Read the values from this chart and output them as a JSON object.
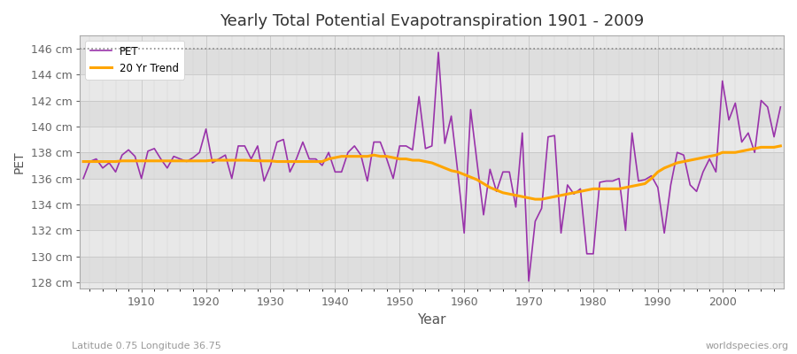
{
  "title": "Yearly Total Potential Evapotranspiration 1901 - 2009",
  "xlabel": "Year",
  "ylabel": "PET",
  "subtitle_left": "Latitude 0.75 Longitude 36.75",
  "subtitle_right": "worldspecies.org",
  "pet_color": "#9933AA",
  "trend_color": "#FFA500",
  "background_color": "#FFFFFF",
  "plot_bg_color_light": "#EBEBEB",
  "plot_bg_color_dark": "#DCDCDC",
  "dotted_line_color": "#888888",
  "ylim": [
    127.5,
    147.0
  ],
  "yticks": [
    128,
    130,
    132,
    134,
    136,
    138,
    140,
    142,
    144,
    146
  ],
  "xlim": [
    1900.5,
    2009.5
  ],
  "years": [
    1901,
    1902,
    1903,
    1904,
    1905,
    1906,
    1907,
    1908,
    1909,
    1910,
    1911,
    1912,
    1913,
    1914,
    1915,
    1916,
    1917,
    1918,
    1919,
    1920,
    1921,
    1922,
    1923,
    1924,
    1925,
    1926,
    1927,
    1928,
    1929,
    1930,
    1931,
    1932,
    1933,
    1934,
    1935,
    1936,
    1937,
    1938,
    1939,
    1940,
    1941,
    1942,
    1943,
    1944,
    1945,
    1946,
    1947,
    1948,
    1949,
    1950,
    1951,
    1952,
    1953,
    1954,
    1955,
    1956,
    1957,
    1958,
    1959,
    1960,
    1961,
    1962,
    1963,
    1964,
    1965,
    1966,
    1967,
    1968,
    1969,
    1970,
    1971,
    1972,
    1973,
    1974,
    1975,
    1976,
    1977,
    1978,
    1979,
    1980,
    1981,
    1982,
    1983,
    1984,
    1985,
    1986,
    1987,
    1988,
    1989,
    1990,
    1991,
    1992,
    1993,
    1994,
    1995,
    1996,
    1997,
    1998,
    1999,
    2000,
    2001,
    2002,
    2003,
    2004,
    2005,
    2006,
    2007,
    2008,
    2009
  ],
  "pet_values": [
    136.0,
    137.3,
    137.5,
    136.8,
    137.2,
    136.5,
    137.8,
    138.2,
    137.7,
    136.0,
    138.1,
    138.3,
    137.5,
    136.8,
    137.7,
    137.5,
    137.3,
    137.6,
    138.0,
    139.8,
    137.2,
    137.5,
    137.8,
    136.0,
    138.5,
    138.5,
    137.5,
    138.5,
    135.8,
    137.0,
    138.8,
    139.0,
    136.5,
    137.5,
    138.8,
    137.5,
    137.5,
    137.0,
    138.0,
    136.5,
    136.5,
    138.0,
    138.5,
    137.8,
    135.8,
    138.8,
    138.8,
    137.5,
    136.0,
    138.5,
    138.5,
    138.2,
    142.3,
    138.3,
    138.5,
    145.7,
    138.7,
    140.8,
    136.5,
    131.8,
    141.3,
    137.2,
    133.2,
    136.7,
    135.0,
    136.5,
    136.5,
    133.8,
    139.5,
    128.1,
    132.7,
    133.7,
    139.2,
    139.3,
    131.8,
    135.5,
    134.8,
    135.2,
    130.2,
    130.2,
    135.7,
    135.8,
    135.8,
    136.0,
    132.0,
    139.5,
    135.8,
    135.9,
    136.2,
    135.3,
    131.8,
    135.5,
    138.0,
    137.8,
    135.5,
    135.0,
    136.5,
    137.5,
    136.5,
    143.5,
    140.5,
    141.8,
    138.8,
    139.5,
    138.0,
    142.0,
    141.5,
    139.2,
    141.5
  ],
  "trend_values": [
    137.3,
    137.3,
    137.3,
    137.3,
    137.3,
    137.3,
    137.35,
    137.35,
    137.35,
    137.35,
    137.35,
    137.35,
    137.35,
    137.35,
    137.35,
    137.35,
    137.35,
    137.35,
    137.35,
    137.35,
    137.4,
    137.4,
    137.4,
    137.4,
    137.4,
    137.4,
    137.38,
    137.36,
    137.35,
    137.35,
    137.3,
    137.3,
    137.3,
    137.3,
    137.3,
    137.3,
    137.3,
    137.3,
    137.5,
    137.6,
    137.7,
    137.7,
    137.7,
    137.7,
    137.7,
    137.8,
    137.7,
    137.7,
    137.6,
    137.5,
    137.5,
    137.4,
    137.4,
    137.3,
    137.2,
    137.0,
    136.8,
    136.6,
    136.5,
    136.3,
    136.1,
    135.9,
    135.6,
    135.3,
    135.1,
    134.9,
    134.8,
    134.7,
    134.6,
    134.5,
    134.4,
    134.4,
    134.5,
    134.6,
    134.7,
    134.8,
    134.9,
    135.0,
    135.1,
    135.2,
    135.2,
    135.2,
    135.2,
    135.2,
    135.3,
    135.4,
    135.5,
    135.6,
    136.0,
    136.5,
    136.8,
    137.0,
    137.2,
    137.3,
    137.4,
    137.5,
    137.6,
    137.7,
    137.8,
    138.0,
    138.0,
    138.0,
    138.1,
    138.2,
    138.3,
    138.4,
    138.4,
    138.4,
    138.5
  ]
}
